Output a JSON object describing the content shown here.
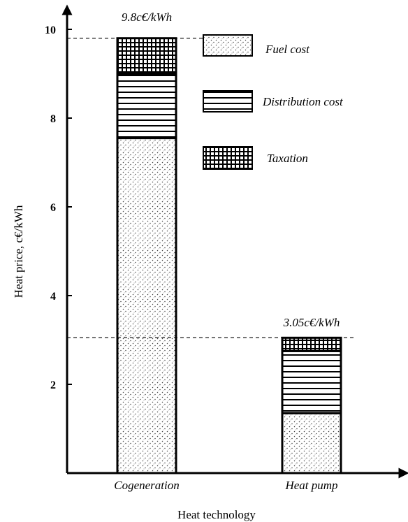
{
  "chart_data": {
    "type": "bar",
    "stacked": true,
    "categories": [
      "Cogeneration",
      "Heat pump"
    ],
    "series": [
      {
        "name": "Fuel cost",
        "values": [
          7.55,
          1.35
        ],
        "pattern": "dots"
      },
      {
        "name": "Distribution cost",
        "values": [
          1.45,
          1.4
        ],
        "pattern": "horizontal-lines"
      },
      {
        "name": "Taxation",
        "values": [
          0.8,
          0.3
        ],
        "pattern": "grid"
      }
    ],
    "totals": [
      9.8,
      3.05
    ],
    "total_labels": [
      "9.8c€/kWh",
      "3.05c€/kWh"
    ],
    "xlabel": "Heat technology",
    "ylabel": "Heat price, c€/kWh",
    "ylim": [
      0,
      10
    ],
    "yticks": [
      "2",
      "4",
      "6",
      "8",
      "10"
    ],
    "grid": false,
    "legend_position": "top-right"
  }
}
